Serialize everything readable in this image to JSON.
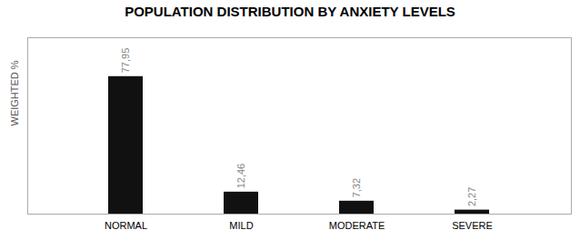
{
  "chart_data": {
    "type": "bar",
    "title": "POPULATION DISTRIBUTION BY ANXIETY LEVELS",
    "categories": [
      "NORMAL",
      "MILD",
      "MODERATE",
      "SEVERE"
    ],
    "values": [
      77.95,
      12.46,
      7.32,
      2.27
    ],
    "value_labels": [
      "77,95",
      "12,46",
      "7,32",
      "2,27"
    ],
    "data_labels": true,
    "color": "#111111",
    "ylabel": "WEIGHTED %",
    "ylim": [
      0,
      100
    ],
    "yticks": [],
    "tick_labels": "x",
    "grid": false
  }
}
